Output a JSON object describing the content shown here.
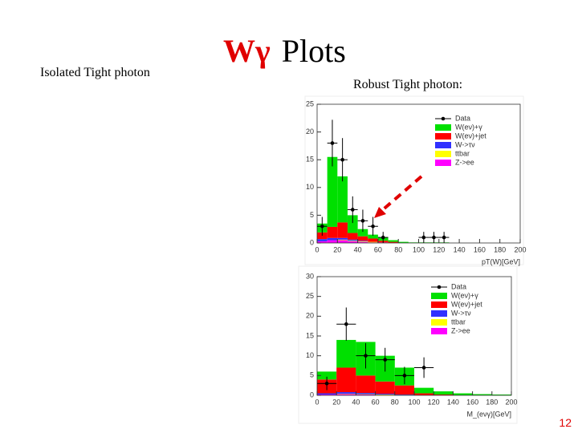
{
  "slide": {
    "left_label": "Isolated Tight photon",
    "title_symbol": "Wγ",
    "title_text": "Plots",
    "right_label": "Robust Tight photon:",
    "page_number": "12"
  },
  "chart_data": [
    {
      "type": "stacked-histogram",
      "xlabel": "pT(W)[GeV]",
      "bins": [
        0,
        10,
        20,
        30,
        40,
        50,
        60,
        70,
        80,
        90,
        100,
        110,
        120,
        130,
        140,
        150,
        160,
        170,
        180,
        190,
        200
      ],
      "xlim": [
        0,
        200
      ],
      "xticks": [
        0,
        20,
        40,
        60,
        80,
        100,
        120,
        140,
        160,
        180,
        200
      ],
      "ylim": [
        0,
        25
      ],
      "yticks": [
        0,
        5,
        10,
        15,
        20,
        25
      ],
      "data": {
        "name": "Data",
        "color": "#000000",
        "values": [
          3,
          18,
          15,
          6,
          4,
          3,
          1,
          null,
          null,
          null,
          1,
          1,
          1,
          null,
          null,
          null,
          null,
          null,
          null,
          null
        ],
        "errors": [
          1.7,
          4.2,
          3.9,
          2.4,
          2,
          1.7,
          1,
          null,
          null,
          null,
          1,
          1,
          1,
          null,
          null,
          null,
          null,
          null,
          null,
          null
        ]
      },
      "series": [
        {
          "name": "W(eν)+γ",
          "color": "#00e000",
          "values": [
            1.6,
            12.6,
            8.3,
            3.2,
            1.3,
            0.7,
            0.6,
            0.3,
            0.2,
            0.1,
            0.1,
            0.1,
            0.1,
            0,
            0,
            0,
            0,
            0,
            0,
            0
          ]
        },
        {
          "name": "W(eν)+jet",
          "color": "#ff0000",
          "values": [
            1.2,
            2,
            2.8,
            1.2,
            0.8,
            0.6,
            0.3,
            0.2,
            0,
            0,
            0,
            0,
            0,
            0,
            0,
            0,
            0,
            0,
            0,
            0
          ]
        },
        {
          "name": "W->τν",
          "color": "#3030ff",
          "values": [
            0.4,
            0.4,
            0.3,
            0.2,
            0.1,
            0,
            0,
            0,
            0,
            0,
            0,
            0,
            0,
            0,
            0,
            0,
            0,
            0,
            0,
            0
          ]
        },
        {
          "name": "ttbar",
          "color": "#ffff00",
          "values": [
            0,
            0,
            0.1,
            0.1,
            0.1,
            0.1,
            0,
            0,
            0,
            0,
            0,
            0,
            0,
            0,
            0,
            0,
            0,
            0,
            0,
            0
          ]
        },
        {
          "name": "Z->ee",
          "color": "#ff00ff",
          "values": [
            0.3,
            0.5,
            0.5,
            0.3,
            0.2,
            0.1,
            0.1,
            0,
            0,
            0,
            0,
            0,
            0,
            0,
            0,
            0,
            0,
            0,
            0,
            0
          ]
        }
      ]
    },
    {
      "type": "stacked-histogram",
      "xlabel": "M_(eνγ)[GeV]",
      "bins": [
        0,
        20,
        40,
        60,
        80,
        100,
        120,
        140,
        160,
        180,
        200
      ],
      "xlim": [
        0,
        200
      ],
      "xticks": [
        0,
        20,
        40,
        60,
        80,
        100,
        120,
        140,
        160,
        180,
        200
      ],
      "ylim": [
        0,
        30
      ],
      "yticks": [
        0,
        5,
        10,
        15,
        20,
        25,
        30
      ],
      "data": {
        "name": "Data",
        "color": "#000000",
        "values": [
          3,
          18,
          10,
          9,
          5,
          7,
          null,
          null,
          null,
          null
        ],
        "errors": [
          1.7,
          4.2,
          3.2,
          3,
          2.2,
          2.6,
          null,
          null,
          null,
          null
        ]
      },
      "series": [
        {
          "name": "W(eν)+γ",
          "color": "#00e000",
          "values": [
            2,
            7,
            8.5,
            6.5,
            4.5,
            1.4,
            0.8,
            0.5,
            0.3,
            0.2
          ]
        },
        {
          "name": "W(eν)+jet",
          "color": "#ff0000",
          "values": [
            3.5,
            6.2,
            4.4,
            3.1,
            2.3,
            0.5,
            0.2,
            0,
            0,
            0
          ]
        },
        {
          "name": "W->τν",
          "color": "#3030ff",
          "values": [
            0.3,
            0.4,
            0.3,
            0.2,
            0.1,
            0,
            0,
            0,
            0,
            0
          ]
        },
        {
          "name": "ttbar",
          "color": "#ffff00",
          "values": [
            0,
            0.1,
            0.1,
            0.1,
            0.1,
            0,
            0,
            0,
            0,
            0
          ]
        },
        {
          "name": "Z->ee",
          "color": "#ff00ff",
          "values": [
            0.2,
            0.3,
            0.2,
            0.1,
            0,
            0,
            0,
            0,
            0,
            0
          ]
        }
      ]
    }
  ]
}
